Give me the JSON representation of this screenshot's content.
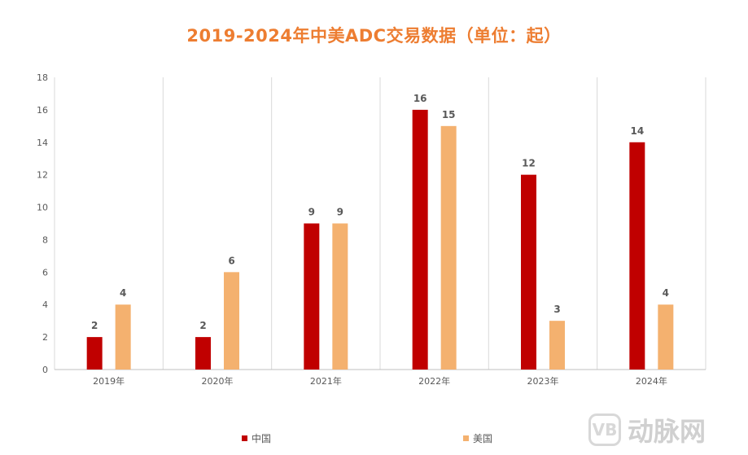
{
  "chart_data": {
    "type": "bar",
    "title": "2019-2024年中美ADC交易数据（单位：起）",
    "categories": [
      "2019年",
      "2020年",
      "2021年",
      "2022年",
      "2023年",
      "2024年"
    ],
    "series": [
      {
        "name": "中国",
        "color": "#c00000",
        "values": [
          2,
          2,
          9,
          16,
          12,
          14
        ]
      },
      {
        "name": "美国",
        "color": "#f4b16f",
        "values": [
          4,
          6,
          9,
          15,
          3,
          4
        ]
      }
    ],
    "ylim": [
      0,
      18
    ],
    "yticks": [
      0,
      2,
      4,
      6,
      8,
      10,
      12,
      14,
      16,
      18
    ],
    "xlabel": "",
    "ylabel": "",
    "grid": "vertical category separators",
    "legend": "bottom"
  },
  "watermark": {
    "logo": "VB",
    "text": "动脉网"
  }
}
